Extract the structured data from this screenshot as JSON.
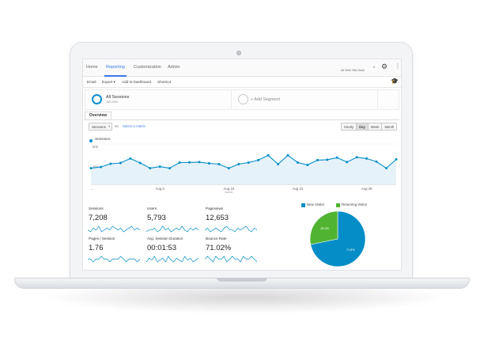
{
  "colors": {
    "primary_blue": "#058dc7",
    "returning_green": "#50b432",
    "link_blue": "#3b78e7",
    "area_fill": "#e6f2fa"
  },
  "nav": {
    "tabs": [
      {
        "label": "Home"
      },
      {
        "label": "Reporting"
      },
      {
        "label": "Customization"
      },
      {
        "label": "Admin"
      }
    ],
    "active_tab": "Reporting",
    "account_label": "All Web Site Data",
    "icons": [
      "gear-icon",
      "kebab-menu-icon"
    ]
  },
  "toolbar": {
    "items": [
      {
        "label": "Email"
      },
      {
        "label": "Export ▾"
      },
      {
        "label": "Add to Dashboard"
      },
      {
        "label": "Shortcut"
      }
    ],
    "right_icon": "graduation-cap-icon"
  },
  "segments": {
    "active": {
      "title": "All Sessions",
      "subtitle": "100.00%"
    },
    "add_label": "+ Add Segment"
  },
  "overview": {
    "tab_label": "Overview",
    "metric_select": "Sessions",
    "vs_label": "vs.",
    "select_metric_label": "Select a metric",
    "granularity": [
      "Hourly",
      "Day",
      "Week",
      "Month"
    ],
    "active_granularity": "Day"
  },
  "chart_data": [
    {
      "type": "area",
      "series": [
        {
          "name": "Sessions",
          "values": [
            200,
            215,
            255,
            265,
            320,
            265,
            200,
            220,
            200,
            270,
            272,
            275,
            260,
            250,
            200,
            250,
            270,
            300,
            360,
            250,
            360,
            270,
            240,
            300,
            305,
            330,
            275,
            335,
            320,
            280,
            200,
            310
          ]
        }
      ],
      "y_ticks": [
        "500",
        "250"
      ],
      "ylim": [
        0,
        500
      ],
      "x_tick_labels": [
        "...",
        "Aug 8",
        "Aug 15",
        "Aug 22",
        "Aug 29"
      ],
      "grid": true,
      "legend": "top-left"
    },
    {
      "type": "pie",
      "categories": [
        "New Visitor",
        "Returning Visitor"
      ],
      "values": [
        71.8,
        28.2
      ],
      "slice_labels": [
        "71.8%",
        "28.2%"
      ],
      "legend": "top"
    }
  ],
  "metrics": [
    {
      "label": "Sessions",
      "value": "7,208",
      "spark": [
        5,
        4,
        6,
        5,
        7,
        4,
        5,
        6,
        5,
        7,
        6,
        5,
        6,
        4,
        5,
        6,
        7,
        5,
        6,
        5
      ]
    },
    {
      "label": "Users",
      "value": "5,793",
      "spark": [
        4,
        5,
        5,
        6,
        4,
        5,
        7,
        5,
        6,
        4,
        5,
        6,
        5,
        7,
        5,
        4,
        6,
        5,
        6,
        5
      ]
    },
    {
      "label": "Pageviews",
      "value": "12,653",
      "spark": [
        5,
        6,
        4,
        5,
        6,
        5,
        4,
        6,
        7,
        5,
        5,
        4,
        6,
        5,
        6,
        7,
        5,
        4,
        6,
        5
      ]
    },
    {
      "label": "Pages / Session",
      "value": "1.76",
      "spark": [
        5,
        5,
        4,
        5,
        5,
        6,
        5,
        5,
        4,
        5,
        5,
        5,
        6,
        5,
        4,
        5,
        5,
        5,
        4,
        5
      ]
    },
    {
      "label": "Avg. Session Duration",
      "value": "00:01:53",
      "spark": [
        4,
        6,
        5,
        7,
        4,
        5,
        6,
        4,
        7,
        5,
        4,
        6,
        5,
        4,
        7,
        5,
        6,
        4,
        5,
        6
      ]
    },
    {
      "label": "Bounce Rate",
      "value": "71.02%",
      "spark": [
        5,
        6,
        5,
        4,
        6,
        5,
        5,
        6,
        4,
        5,
        6,
        5,
        5,
        4,
        6,
        5,
        5,
        6,
        5,
        4
      ]
    }
  ]
}
